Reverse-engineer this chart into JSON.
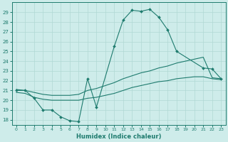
{
  "title": "",
  "xlabel": "Humidex (Indice chaleur)",
  "ylabel": "",
  "background_color": "#ceecea",
  "grid_color": "#b0d8d4",
  "line_color": "#1e7b6e",
  "xlim": [
    -0.5,
    23.5
  ],
  "ylim": [
    17.5,
    30.0
  ],
  "xticks": [
    0,
    1,
    2,
    3,
    4,
    5,
    6,
    7,
    8,
    9,
    10,
    11,
    12,
    13,
    14,
    15,
    16,
    17,
    18,
    19,
    20,
    21,
    22,
    23
  ],
  "yticks": [
    18,
    19,
    20,
    21,
    22,
    23,
    24,
    25,
    26,
    27,
    28,
    29
  ],
  "line1_x": [
    0,
    1,
    2,
    3,
    4,
    5,
    6,
    7,
    8,
    9,
    11,
    12,
    13,
    14,
    15,
    16,
    17,
    18,
    21,
    22,
    23
  ],
  "line1_y": [
    21.0,
    21.0,
    20.2,
    19.0,
    19.0,
    18.3,
    17.9,
    17.8,
    22.2,
    19.3,
    25.5,
    28.2,
    29.2,
    29.1,
    29.3,
    28.5,
    27.2,
    25.0,
    23.3,
    23.2,
    22.2
  ],
  "line2_x": [
    0,
    1,
    2,
    3,
    4,
    5,
    6,
    7,
    8,
    9,
    10,
    11,
    12,
    13,
    14,
    15,
    16,
    17,
    18,
    19,
    20,
    21,
    22,
    23
  ],
  "line2_y": [
    21.1,
    21.0,
    20.8,
    20.6,
    20.5,
    20.5,
    20.5,
    20.6,
    21.0,
    21.2,
    21.5,
    21.8,
    22.2,
    22.5,
    22.8,
    23.0,
    23.3,
    23.5,
    23.8,
    24.0,
    24.2,
    24.4,
    22.3,
    22.2
  ],
  "line3_x": [
    0,
    1,
    2,
    3,
    4,
    5,
    6,
    7,
    8,
    9,
    10,
    11,
    12,
    13,
    14,
    15,
    16,
    17,
    18,
    19,
    20,
    21,
    22,
    23
  ],
  "line3_y": [
    20.8,
    20.7,
    20.3,
    20.1,
    20.0,
    20.0,
    20.0,
    20.0,
    20.2,
    20.3,
    20.5,
    20.7,
    21.0,
    21.3,
    21.5,
    21.7,
    21.9,
    22.0,
    22.2,
    22.3,
    22.4,
    22.4,
    22.2,
    22.1
  ]
}
